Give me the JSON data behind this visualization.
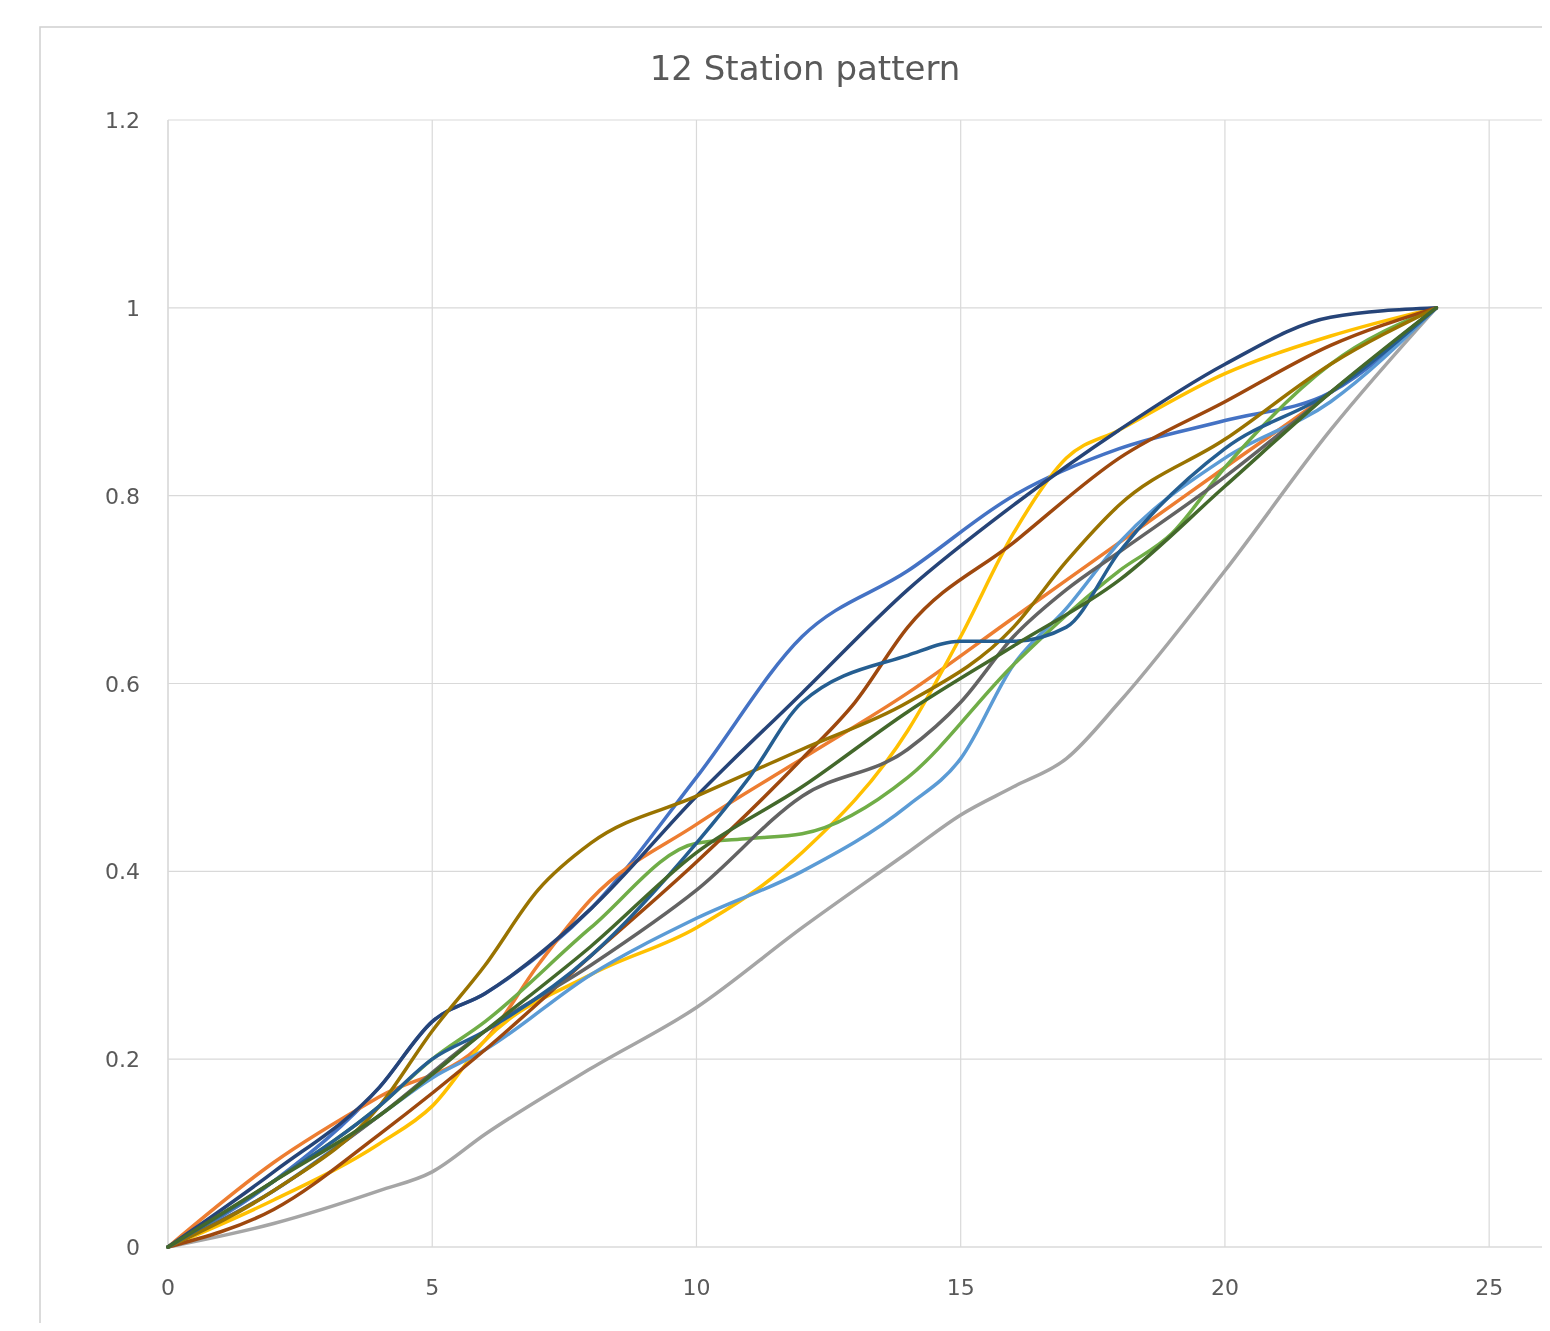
{
  "chart_data": {
    "type": "line",
    "title": "12 Station pattern",
    "xlim": [
      0,
      26
    ],
    "xticks": [
      0,
      5,
      10,
      15,
      20,
      25
    ],
    "ylim": [
      0,
      1.2
    ],
    "yticks": [
      0,
      0.2,
      0.4,
      0.6,
      0.8,
      1,
      1.2
    ],
    "grid": true,
    "marker": "none",
    "line_style": "solid",
    "series": [
      {
        "color": "#4472c4",
        "x": [
          0,
          2,
          4,
          5,
          6,
          8,
          10,
          12,
          14,
          16,
          18,
          20,
          22,
          24
        ],
        "values": [
          0,
          0.07,
          0.17,
          0.24,
          0.27,
          0.36,
          0.5,
          0.65,
          0.72,
          0.8,
          0.85,
          0.88,
          0.91,
          1
        ]
      },
      {
        "color": "#ed7d31",
        "x": [
          0,
          2,
          4,
          6,
          7,
          8,
          10,
          12,
          14,
          16,
          18,
          20,
          22,
          24
        ],
        "values": [
          0,
          0.09,
          0.16,
          0.22,
          0.3,
          0.37,
          0.45,
          0.52,
          0.59,
          0.67,
          0.75,
          0.83,
          0.91,
          1
        ]
      },
      {
        "color": "#a5a5a5",
        "x": [
          0,
          2,
          4,
          5,
          6,
          8,
          10,
          12,
          14,
          15,
          16,
          17,
          18,
          20,
          22,
          24
        ],
        "values": [
          0,
          0.025,
          0.06,
          0.08,
          0.12,
          0.19,
          0.255,
          0.34,
          0.42,
          0.46,
          0.49,
          0.52,
          0.58,
          0.72,
          0.87,
          1
        ]
      },
      {
        "color": "#ffc000",
        "x": [
          0,
          2,
          4,
          5,
          6,
          8,
          10,
          12,
          14,
          15,
          16,
          17,
          18,
          20,
          22,
          24
        ],
        "values": [
          0,
          0.05,
          0.11,
          0.15,
          0.22,
          0.29,
          0.34,
          0.42,
          0.55,
          0.65,
          0.76,
          0.84,
          0.87,
          0.93,
          0.97,
          1
        ]
      },
      {
        "color": "#5b9bd5",
        "x": [
          0,
          2,
          4,
          5,
          6,
          8,
          10,
          12,
          14,
          15,
          16,
          17,
          18,
          20,
          22,
          24
        ],
        "values": [
          0,
          0.06,
          0.14,
          0.18,
          0.21,
          0.29,
          0.35,
          0.4,
          0.47,
          0.52,
          0.62,
          0.68,
          0.75,
          0.84,
          0.9,
          1
        ]
      },
      {
        "color": "#70ad47",
        "x": [
          0,
          2,
          4,
          5,
          6,
          8,
          10,
          11,
          12,
          14,
          16,
          18,
          19,
          20,
          22,
          24
        ],
        "values": [
          0,
          0.07,
          0.15,
          0.2,
          0.24,
          0.34,
          0.43,
          0.435,
          0.44,
          0.5,
          0.62,
          0.72,
          0.76,
          0.83,
          0.94,
          1
        ]
      },
      {
        "color": "#264478",
        "x": [
          0,
          2,
          4,
          5,
          6,
          8,
          10,
          12,
          14,
          16,
          18,
          20,
          22,
          24
        ],
        "values": [
          0,
          0.08,
          0.17,
          0.24,
          0.27,
          0.36,
          0.48,
          0.59,
          0.7,
          0.79,
          0.87,
          0.94,
          0.99,
          1
        ]
      },
      {
        "color": "#9e480e",
        "x": [
          0,
          2,
          4,
          6,
          8,
          10,
          12,
          13,
          14,
          16,
          18,
          20,
          22,
          24
        ],
        "values": [
          0,
          0.04,
          0.12,
          0.21,
          0.31,
          0.41,
          0.52,
          0.58,
          0.66,
          0.75,
          0.84,
          0.9,
          0.96,
          1
        ]
      },
      {
        "color": "#636363",
        "x": [
          0,
          2,
          4,
          6,
          8,
          10,
          12,
          14,
          15,
          16,
          17,
          18,
          20,
          22,
          24
        ],
        "values": [
          0,
          0.06,
          0.14,
          0.23,
          0.3,
          0.38,
          0.48,
          0.53,
          0.58,
          0.65,
          0.7,
          0.74,
          0.82,
          0.91,
          1
        ]
      },
      {
        "color": "#997300",
        "x": [
          0,
          2,
          4,
          5,
          6,
          7,
          8,
          10,
          12,
          14,
          16,
          17,
          18,
          20,
          22,
          24
        ],
        "values": [
          0,
          0.06,
          0.15,
          0.23,
          0.3,
          0.38,
          0.43,
          0.48,
          0.53,
          0.58,
          0.66,
          0.73,
          0.79,
          0.86,
          0.94,
          1
        ]
      },
      {
        "color": "#255e91",
        "x": [
          0,
          2,
          4,
          5,
          6,
          8,
          10,
          11,
          12,
          14,
          15,
          16,
          17,
          18,
          20,
          22,
          24
        ],
        "values": [
          0,
          0.07,
          0.15,
          0.2,
          0.23,
          0.31,
          0.43,
          0.5,
          0.58,
          0.63,
          0.645,
          0.645,
          0.66,
          0.74,
          0.85,
          0.91,
          1
        ]
      },
      {
        "color": "#43682b",
        "x": [
          0,
          2,
          4,
          6,
          8,
          10,
          12,
          14,
          16,
          18,
          20,
          22,
          24
        ],
        "values": [
          0,
          0.07,
          0.14,
          0.23,
          0.32,
          0.42,
          0.49,
          0.57,
          0.64,
          0.71,
          0.81,
          0.91,
          1
        ]
      }
    ]
  }
}
